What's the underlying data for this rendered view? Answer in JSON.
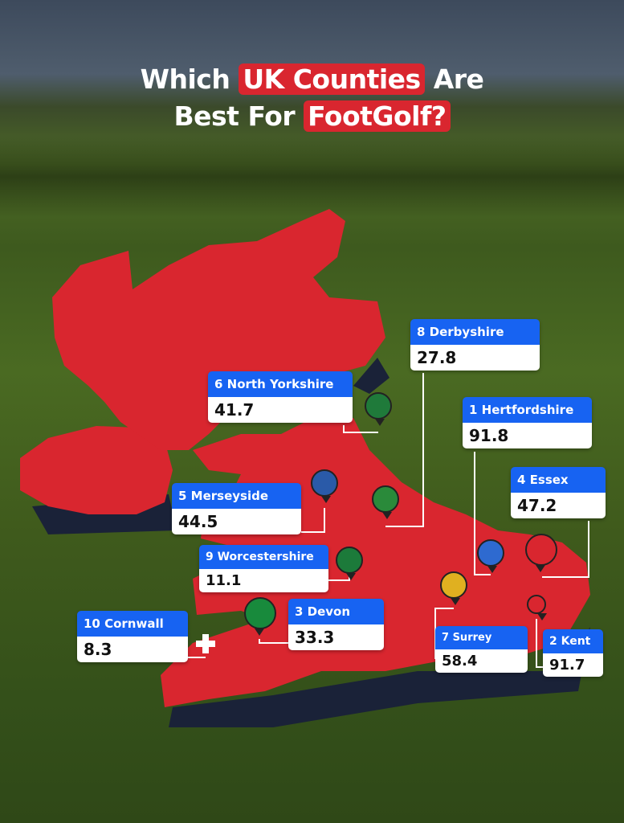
{
  "title": {
    "line1_pre": "Which",
    "line1_highlight": "UK Counties",
    "line1_post": "Are",
    "line2_pre": "Best For",
    "line2_highlight": "FootGolf?"
  },
  "colors": {
    "map": "#d9262f",
    "card_header": "#1763f2",
    "card_body": "#ffffff",
    "highlight": "#d9262f"
  },
  "counties": [
    {
      "rank": "1",
      "name": "1 Hertfordshire",
      "score": "91.8"
    },
    {
      "rank": "2",
      "name": "2 Kent",
      "score": "91.7"
    },
    {
      "rank": "3",
      "name": "3 Devon",
      "score": "33.3"
    },
    {
      "rank": "4",
      "name": "4 Essex",
      "score": "47.2"
    },
    {
      "rank": "5",
      "name": "5 Merseyside",
      "score": "44.5"
    },
    {
      "rank": "6",
      "name": "6 North Yorkshire",
      "score": "41.7"
    },
    {
      "rank": "7",
      "name": "7 Surrey",
      "score": "58.4"
    },
    {
      "rank": "8",
      "name": "8 Derbyshire",
      "score": "27.8"
    },
    {
      "rank": "9",
      "name": "9 Worcestershire",
      "score": "11.1"
    },
    {
      "rank": "10",
      "name": "10 Cornwall",
      "score": "8.3"
    }
  ]
}
